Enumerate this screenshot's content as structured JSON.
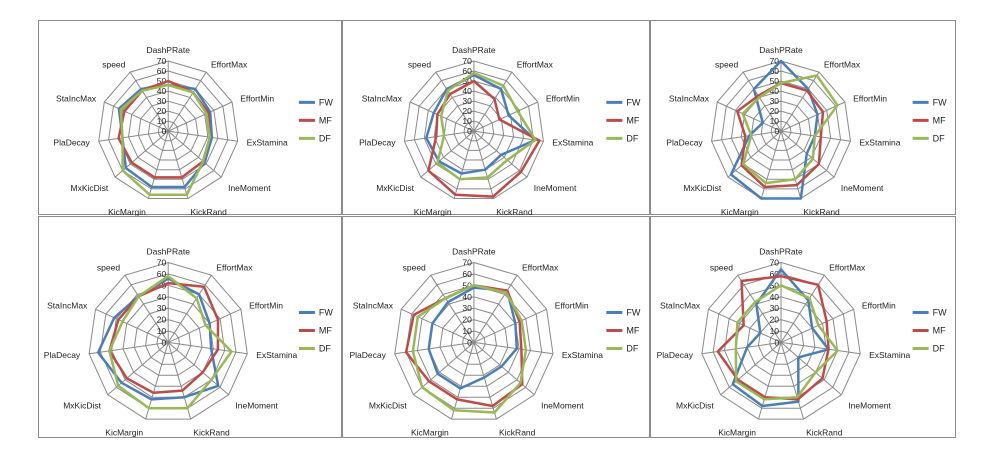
{
  "series_colors": {
    "FW": "#4a7ebb",
    "MF": "#be4b48",
    "DF": "#98b954"
  },
  "chart_data": [
    {
      "type": "radar",
      "axes": [
        "DashPRate",
        "EffortMax",
        "EffortMin",
        "ExStamina",
        "IneMoment",
        "KickRand",
        "KicMargin",
        "MxKicDist",
        "PlaDecay",
        "StaIncMax",
        "speed"
      ],
      "r_ticks": [
        0,
        10,
        20,
        30,
        40,
        50,
        60,
        70
      ],
      "r_range": [
        0,
        70
      ],
      "legend_position": "right",
      "series": [
        {
          "name": "FW",
          "values": [
            46,
            50,
            46,
            44,
            48,
            58,
            58,
            56,
            46,
            54,
            50
          ]
        },
        {
          "name": "MF",
          "values": [
            50,
            46,
            44,
            42,
            46,
            48,
            48,
            48,
            50,
            48,
            48
          ]
        },
        {
          "name": "DF",
          "values": [
            46,
            46,
            42,
            42,
            46,
            66,
            66,
            60,
            46,
            52,
            48
          ]
        }
      ]
    },
    {
      "type": "radar",
      "axes": [
        "DashPRate",
        "EffortMax",
        "EffortMin",
        "ExStamina",
        "IneMoment",
        "KickRand",
        "KicMargin",
        "MxKicDist",
        "PlaDecay",
        "StaIncMax",
        "speed"
      ],
      "r_ticks": [
        0,
        10,
        20,
        30,
        40,
        50,
        60,
        70
      ],
      "r_range": [
        0,
        70
      ],
      "legend_position": "right",
      "series": [
        {
          "name": "FW",
          "values": [
            56,
            50,
            38,
            62,
            36,
            40,
            44,
            46,
            48,
            44,
            50
          ]
        },
        {
          "name": "MF",
          "values": [
            50,
            38,
            28,
            66,
            62,
            68,
            66,
            60,
            38,
            40,
            44
          ]
        },
        {
          "name": "DF",
          "values": [
            58,
            54,
            48,
            62,
            44,
            48,
            50,
            48,
            30,
            36,
            48
          ]
        }
      ]
    },
    {
      "type": "radar",
      "axes": [
        "DashPRate",
        "EffortMax",
        "EffortMin",
        "ExStamina",
        "IneMoment",
        "KickRand",
        "KicMargin",
        "MxKicDist",
        "PlaDecay",
        "StaIncMax",
        "speed"
      ],
      "r_ticks": [
        0,
        10,
        20,
        30,
        40,
        50,
        60,
        70
      ],
      "r_range": [
        0,
        70
      ],
      "legend_position": "right",
      "series": [
        {
          "name": "FW",
          "values": [
            70,
            50,
            40,
            34,
            34,
            70,
            70,
            66,
            32,
            20,
            50
          ]
        },
        {
          "name": "MF",
          "values": [
            48,
            48,
            46,
            40,
            50,
            56,
            58,
            52,
            36,
            48,
            42
          ]
        },
        {
          "name": "DF",
          "values": [
            48,
            66,
            62,
            34,
            42,
            50,
            54,
            50,
            30,
            42,
            40
          ]
        }
      ]
    },
    {
      "type": "radar",
      "axes": [
        "DashPRate",
        "EffortMax",
        "EffortMin",
        "ExStamina",
        "IneMoment",
        "KickRand",
        "KicMargin",
        "MxKicDist",
        "PlaDecay",
        "StaIncMax",
        "speed"
      ],
      "r_ticks": [
        0,
        10,
        20,
        30,
        40,
        50,
        60,
        70
      ],
      "r_range": [
        0,
        70
      ],
      "legend_position": "right",
      "series": [
        {
          "name": "FW",
          "values": [
            56,
            50,
            40,
            38,
            58,
            50,
            52,
            54,
            62,
            52,
            48
          ]
        },
        {
          "name": "MF",
          "values": [
            52,
            58,
            48,
            44,
            40,
            44,
            46,
            48,
            52,
            48,
            48
          ]
        },
        {
          "name": "DF",
          "values": [
            58,
            46,
            36,
            56,
            50,
            60,
            60,
            58,
            52,
            44,
            48
          ]
        }
      ]
    },
    {
      "type": "radar",
      "axes": [
        "DashPRate",
        "EffortMax",
        "EffortMin",
        "ExStamina",
        "IneMoment",
        "KickRand",
        "KicMargin",
        "MxKicDist",
        "PlaDecay",
        "StaIncMax",
        "speed"
      ],
      "r_ticks": [
        0,
        10,
        20,
        30,
        40,
        50,
        60,
        70
      ],
      "r_range": [
        0,
        70
      ],
      "legend_position": "right",
      "series": [
        {
          "name": "FW",
          "values": [
            48,
            54,
            40,
            38,
            32,
            32,
            42,
            42,
            40,
            40,
            42
          ]
        },
        {
          "name": "MF",
          "values": [
            50,
            54,
            44,
            42,
            56,
            58,
            52,
            52,
            60,
            58,
            46
          ]
        },
        {
          "name": "DF",
          "values": [
            50,
            52,
            46,
            46,
            54,
            64,
            62,
            60,
            54,
            54,
            46
          ]
        }
      ]
    },
    {
      "type": "radar",
      "axes": [
        "DashPRate",
        "EffortMax",
        "EffortMin",
        "ExStamina",
        "IneMoment",
        "KickRand",
        "KicMargin",
        "MxKicDist",
        "PlaDecay",
        "StaIncMax",
        "speed"
      ],
      "r_ticks": [
        0,
        10,
        20,
        30,
        40,
        50,
        60,
        70
      ],
      "r_range": [
        0,
        70
      ],
      "legend_position": "right",
      "series": [
        {
          "name": "FW",
          "values": [
            64,
            44,
            30,
            42,
            20,
            54,
            58,
            56,
            30,
            20,
            40
          ]
        },
        {
          "name": "MF",
          "values": [
            58,
            60,
            44,
            42,
            48,
            52,
            50,
            50,
            56,
            36,
            64
          ]
        },
        {
          "name": "DF",
          "values": [
            50,
            46,
            36,
            50,
            40,
            50,
            52,
            52,
            40,
            42,
            42
          ]
        }
      ]
    }
  ]
}
